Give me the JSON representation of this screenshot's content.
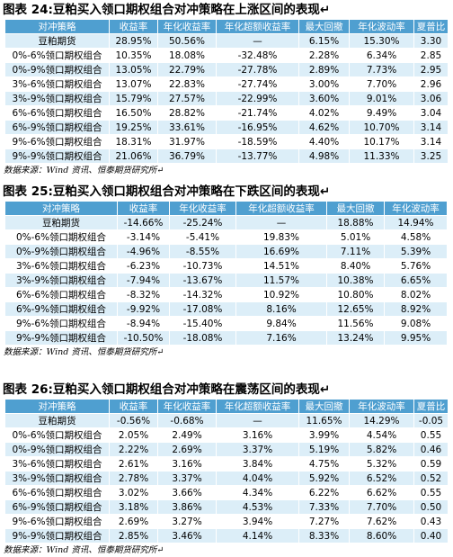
{
  "sections": [
    {
      "title": "图表 24:豆粕买入领口期权组合对冲策略在上涨区间的表现↵",
      "table": {
        "header": [
          "对冲策略",
          "收益率",
          "年化收益率",
          "年化超额收益率",
          "最大回撤",
          "年化波动率",
          "夏普比"
        ],
        "rows": [
          [
            "豆粕期货",
            "28.95%",
            "50.56%",
            "—",
            "6.15%",
            "15.30%",
            "3.30"
          ],
          [
            "0%-6%领口期权组合",
            "10.35%",
            "18.08%",
            "-32.48%",
            "2.28%",
            "6.34%",
            "2.85"
          ],
          [
            "0%-9%领口期权组合",
            "13.05%",
            "22.79%",
            "-27.78%",
            "2.89%",
            "7.73%",
            "2.95"
          ],
          [
            "3%-6%领口期权组合",
            "13.07%",
            "22.83%",
            "-27.74%",
            "3.00%",
            "7.70%",
            "2.96"
          ],
          [
            "3%-9%领口期权组合",
            "15.79%",
            "27.57%",
            "-22.99%",
            "3.60%",
            "9.01%",
            "3.06"
          ],
          [
            "6%-6%领口期权组合",
            "16.50%",
            "28.82%",
            "-21.74%",
            "4.02%",
            "9.49%",
            "3.04"
          ],
          [
            "6%-9%领口期权组合",
            "19.25%",
            "33.61%",
            "-16.95%",
            "4.62%",
            "10.70%",
            "3.14"
          ],
          [
            "9%-6%领口期权组合",
            "18.31%",
            "31.97%",
            "-18.59%",
            "4.40%",
            "10.17%",
            "3.14"
          ],
          [
            "9%-9%领口期权组合",
            "21.06%",
            "36.79%",
            "-13.77%",
            "4.98%",
            "11.33%",
            "3.25"
          ]
        ]
      },
      "source": "数据来源：Wind 资讯、恒泰期货研究所↵"
    },
    {
      "title": "图表 25:豆粕买入领口期权组合对冲策略在下跌区间的表现↵",
      "table": {
        "header": [
          "对冲策略",
          "收益率",
          "年化收益率",
          "年化超额收益率",
          "最大回撤",
          "年化波动率"
        ],
        "rows": [
          [
            "豆粕期货",
            "-14.66%",
            "-25.24%",
            "—",
            "18.88%",
            "14.94%"
          ],
          [
            "0%-6%领口期权组合",
            "-3.14%",
            "-5.41%",
            "19.83%",
            "5.01%",
            "4.58%"
          ],
          [
            "0%-9%领口期权组合",
            "-4.96%",
            "-8.55%",
            "16.69%",
            "7.11%",
            "5.39%"
          ],
          [
            "3%-6%领口期权组合",
            "-6.23%",
            "-10.73%",
            "14.51%",
            "8.40%",
            "5.76%"
          ],
          [
            "3%-9%领口期权组合",
            "-7.94%",
            "-13.67%",
            "11.57%",
            "10.38%",
            "6.65%"
          ],
          [
            "6%-6%领口期权组合",
            "-8.32%",
            "-14.32%",
            "10.92%",
            "10.80%",
            "8.02%"
          ],
          [
            "6%-9%领口期权组合",
            "-9.92%",
            "-17.08%",
            "8.16%",
            "12.65%",
            "8.92%"
          ],
          [
            "9%-6%领口期权组合",
            "-8.94%",
            "-15.40%",
            "9.84%",
            "11.56%",
            "9.08%"
          ],
          [
            "9%-9%领口期权组合",
            "-10.50%",
            "-18.08%",
            "7.16%",
            "13.24%",
            "9.95%"
          ]
        ]
      },
      "source": "数据来源：Wind 资讯、恒泰期货研究所↵"
    },
    {
      "title": "图表 26:豆粕买入领口期权组合对冲策略在震荡区间的表现↵",
      "table": {
        "header": [
          "对冲策略",
          "收益率",
          "年化收益率",
          "年化超额收益率",
          "最大回撤",
          "年化波动率",
          "夏普比"
        ],
        "rows": [
          [
            "豆粕期货",
            "-0.56%",
            "-0.68%",
            "—",
            "11.65%",
            "14.29%",
            "-0.05"
          ],
          [
            "0%-6%领口期权组合",
            "2.05%",
            "2.49%",
            "3.16%",
            "3.99%",
            "4.54%",
            "0.55"
          ],
          [
            "0%-9%领口期权组合",
            "2.22%",
            "2.69%",
            "3.37%",
            "5.19%",
            "5.82%",
            "0.46"
          ],
          [
            "3%-6%领口期权组合",
            "2.61%",
            "3.16%",
            "3.84%",
            "4.75%",
            "5.32%",
            "0.59"
          ],
          [
            "3%-9%领口期权组合",
            "2.78%",
            "3.37%",
            "4.04%",
            "5.92%",
            "6.52%",
            "0.52"
          ],
          [
            "6%-6%领口期权组合",
            "3.02%",
            "3.66%",
            "4.34%",
            "6.22%",
            "6.62%",
            "0.55"
          ],
          [
            "6%-9%领口期权组合",
            "3.18%",
            "3.86%",
            "4.53%",
            "7.33%",
            "7.70%",
            "0.50"
          ],
          [
            "9%-6%领口期权组合",
            "2.69%",
            "3.27%",
            "3.94%",
            "7.27%",
            "7.62%",
            "0.43"
          ],
          [
            "9%-9%领口期权组合",
            "2.85%",
            "3.46%",
            "4.14%",
            "8.33%",
            "8.60%",
            "0.40"
          ]
        ]
      },
      "source": "数据来源：Wind 资讯、恒泰期货研究所↵"
    }
  ]
}
